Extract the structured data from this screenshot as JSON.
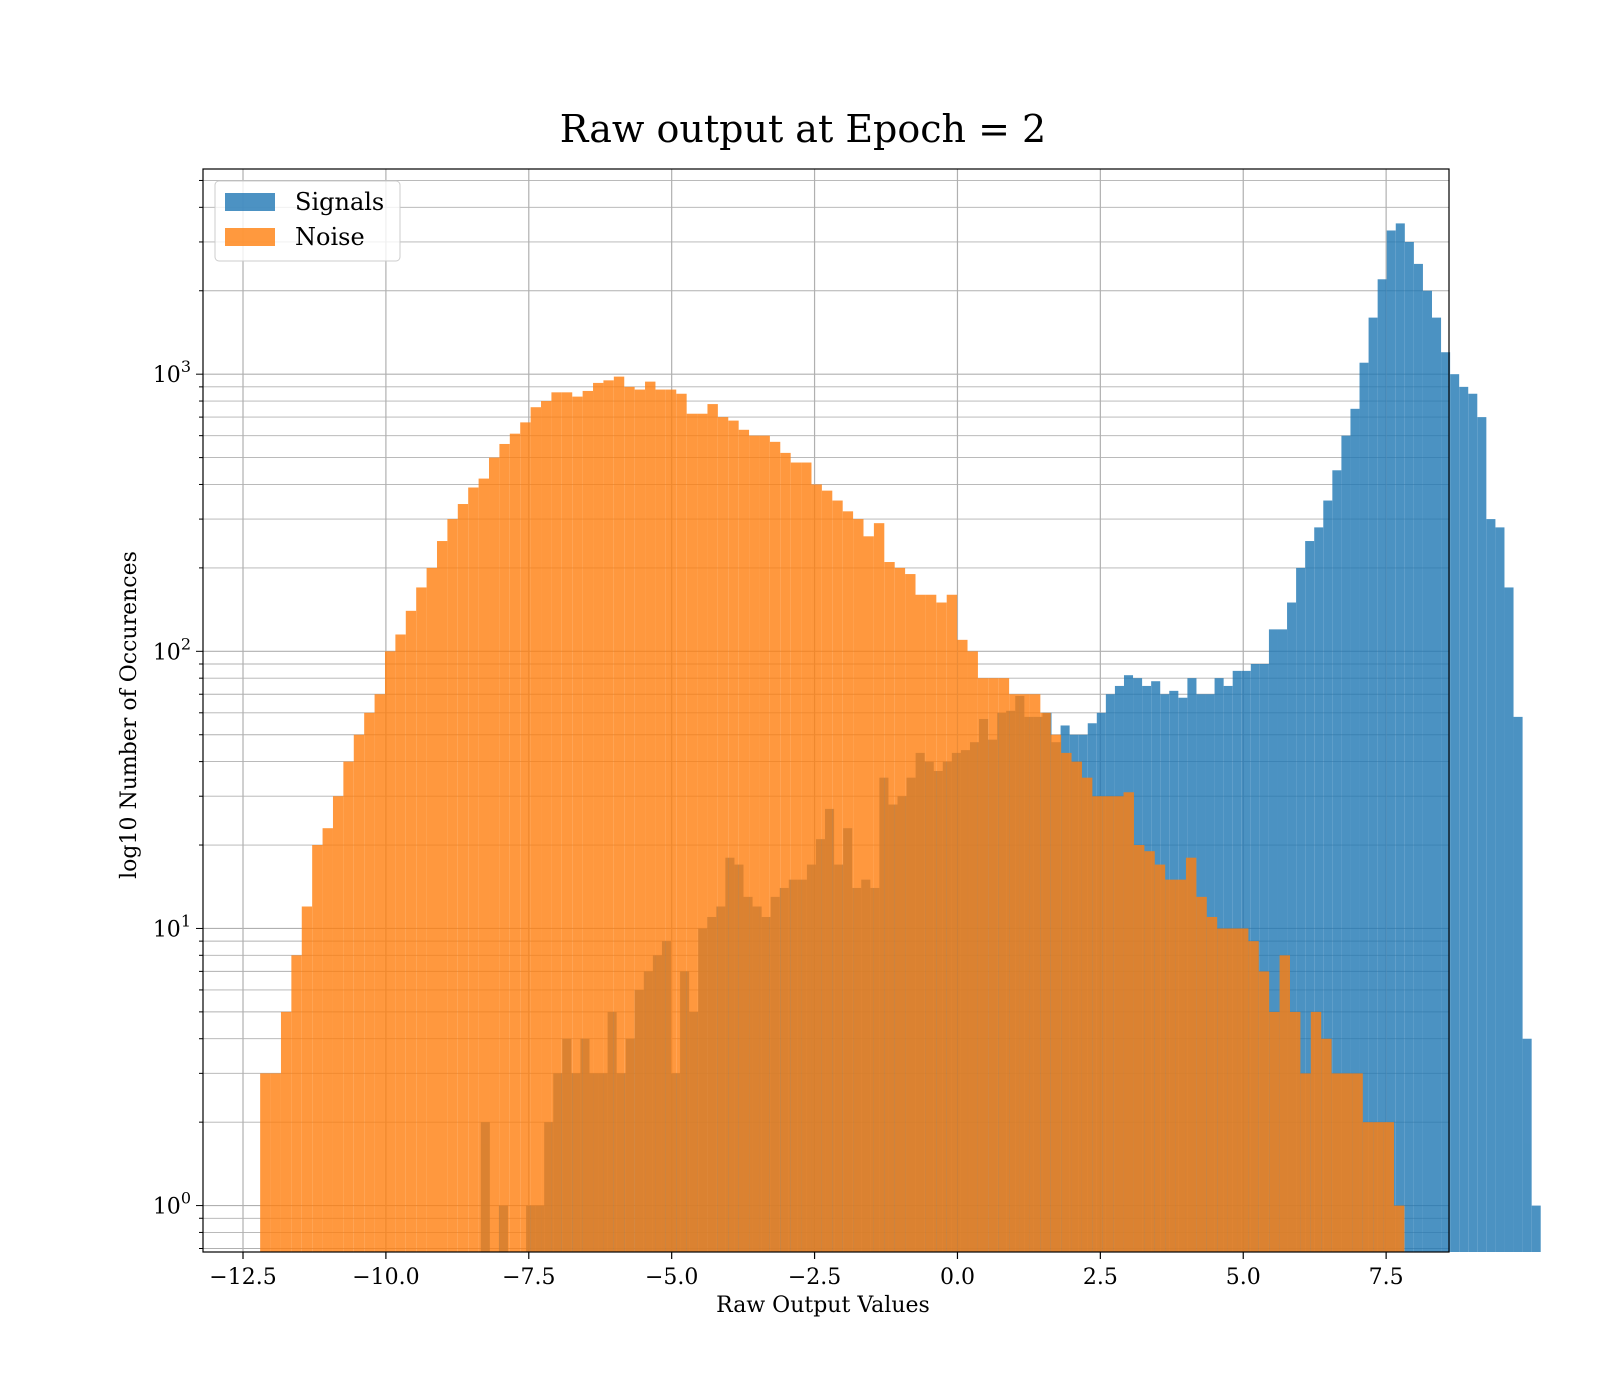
{
  "chart_data": {
    "type": "bar",
    "histogram": true,
    "title": "Raw output at Epoch = 2",
    "xlabel": "Raw Output Values",
    "ylabel": "log10 Number of Occurences",
    "xlim": [
      -13.2,
      8.6
    ],
    "ylim": [
      0.68,
      5500
    ],
    "yscale": "log",
    "grid": true,
    "legend_position": "top-left",
    "x_ticks": [
      -12.5,
      -10.0,
      -7.5,
      -5.0,
      -2.5,
      0.0,
      2.5,
      5.0,
      7.5
    ],
    "x_tick_labels": [
      "−12.5",
      "−10.0",
      "−7.5",
      "−5.0",
      "−2.5",
      "0.0",
      "2.5",
      "5.0",
      "7.5"
    ],
    "y_ticks": [
      1,
      10,
      100,
      1000
    ],
    "y_tick_labels": [
      {
        "base": "10",
        "exp": "0"
      },
      {
        "base": "10",
        "exp": "1"
      },
      {
        "base": "10",
        "exp": "2"
      },
      {
        "base": "10",
        "exp": "3"
      }
    ],
    "series": [
      {
        "name": "Signals",
        "color": "#1f77b4",
        "alpha": 0.8,
        "bin_start": -8.34,
        "bin_width": 0.1585,
        "values": [
          2,
          0,
          1,
          0,
          0,
          1,
          1,
          2,
          3,
          4,
          3,
          4,
          3,
          3,
          5,
          3,
          4,
          6,
          7,
          8,
          9,
          3,
          7,
          5,
          10,
          11,
          12,
          18,
          17,
          13,
          12,
          11,
          13,
          14,
          15,
          15,
          17,
          21,
          27,
          17,
          23,
          14,
          15,
          14,
          35,
          28,
          30,
          35,
          43,
          40,
          37,
          40,
          43,
          44,
          47,
          57,
          48,
          60,
          61,
          69,
          58,
          58,
          60,
          47,
          54,
          50,
          50,
          55,
          60,
          70,
          75,
          82,
          80,
          75,
          78,
          70,
          72,
          68,
          80,
          70,
          70,
          80,
          75,
          85,
          85,
          90,
          90,
          120,
          120,
          150,
          200,
          250,
          280,
          350,
          450,
          600,
          750,
          1100,
          1600,
          2200,
          3300,
          3500,
          3000,
          2500,
          2000,
          1600,
          1200,
          1000,
          900,
          850,
          700,
          300,
          280,
          170,
          58,
          4,
          1
        ]
      },
      {
        "name": "Noise",
        "color": "#ff7f0e",
        "alpha": 0.8,
        "bin_start": -12.2,
        "bin_width": 0.182,
        "values": [
          3,
          3,
          5,
          8,
          12,
          20,
          23,
          30,
          40,
          50,
          60,
          70,
          100,
          115,
          140,
          170,
          200,
          250,
          300,
          340,
          390,
          420,
          500,
          560,
          610,
          670,
          760,
          800,
          860,
          860,
          830,
          870,
          930,
          950,
          980,
          900,
          880,
          940,
          880,
          880,
          850,
          720,
          720,
          780,
          700,
          680,
          630,
          600,
          600,
          570,
          520,
          480,
          480,
          400,
          380,
          350,
          320,
          300,
          260,
          290,
          210,
          200,
          190,
          160,
          160,
          150,
          160,
          110,
          100,
          80,
          80,
          80,
          70,
          70,
          70,
          60,
          50,
          43,
          40,
          35,
          30,
          30,
          30,
          31,
          20,
          19,
          17,
          15,
          15,
          18,
          13,
          11,
          10,
          10,
          10,
          9,
          7,
          5,
          8,
          5,
          3,
          5,
          4,
          3,
          3,
          3,
          2,
          2,
          2,
          1
        ]
      }
    ]
  }
}
